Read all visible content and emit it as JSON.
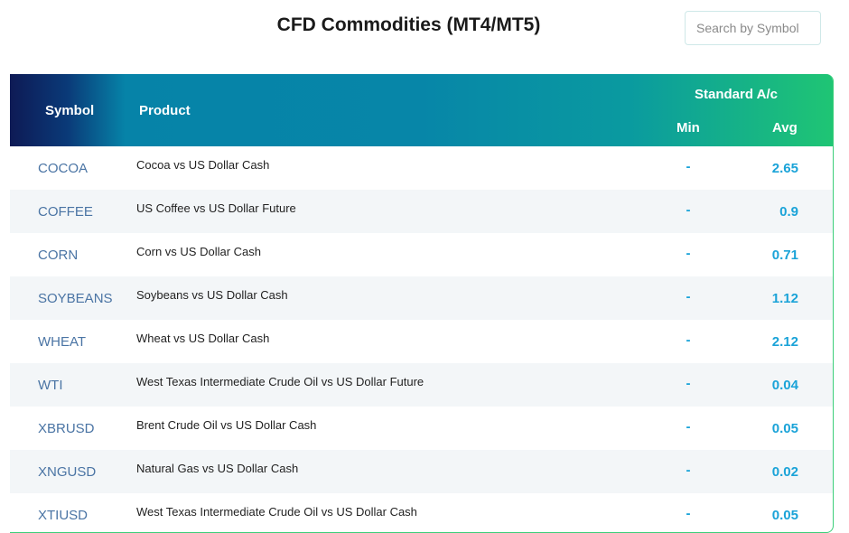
{
  "title": "CFD Commodities (MT4/MT5)",
  "search": {
    "placeholder": "Search by Symbol",
    "value": ""
  },
  "colors": {
    "accent": "#1aa3d8",
    "symbol": "#4a74a4",
    "header_start": "#0e1a55",
    "header_end": "#1fc574"
  },
  "table": {
    "headers": {
      "symbol": "Symbol",
      "product": "Product",
      "group": "Standard A/c",
      "min": "Min",
      "avg": "Avg"
    },
    "rows": [
      {
        "symbol": "COCOA",
        "product": "Cocoa vs US Dollar Cash",
        "min": "-",
        "avg": "2.65"
      },
      {
        "symbol": "COFFEE",
        "product": "US Coffee vs US Dollar Future",
        "min": "-",
        "avg": "0.9"
      },
      {
        "symbol": "CORN",
        "product": "Corn vs US Dollar Cash",
        "min": "-",
        "avg": "0.71"
      },
      {
        "symbol": "SOYBEANS",
        "product": "Soybeans vs US Dollar Cash",
        "min": "-",
        "avg": "1.12"
      },
      {
        "symbol": "WHEAT",
        "product": "Wheat vs US Dollar Cash",
        "min": "-",
        "avg": "2.12"
      },
      {
        "symbol": "WTI",
        "product": "West Texas Intermediate Crude Oil vs US Dollar Future",
        "min": "-",
        "avg": "0.04"
      },
      {
        "symbol": "XBRUSD",
        "product": "Brent Crude Oil vs US Dollar Cash",
        "min": "-",
        "avg": "0.05"
      },
      {
        "symbol": "XNGUSD",
        "product": "Natural Gas vs US Dollar Cash",
        "min": "-",
        "avg": "0.02"
      },
      {
        "symbol": "XTIUSD",
        "product": "West Texas Intermediate Crude Oil vs US Dollar Cash",
        "min": "-",
        "avg": "0.05"
      }
    ]
  }
}
